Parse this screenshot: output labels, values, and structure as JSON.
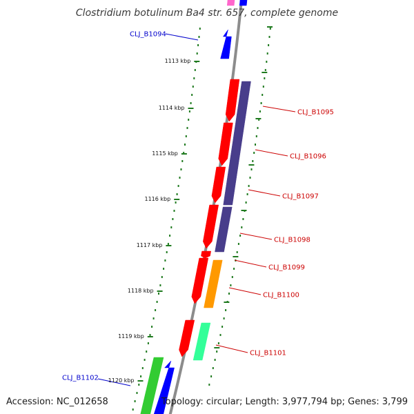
{
  "title": "Clostridium botulinum Ba4 str. 657, complete genome",
  "footer": {
    "accession": "Accession: NC_012658",
    "summary": "Topology: circular; Length: 3,977,794 bp; Genes: 3,799"
  },
  "colors": {
    "backbone": "#8c8c8c",
    "ticks": "#1f7a1f",
    "label_forward": "#0000cc",
    "label_reverse": "#cc0000",
    "red": "#ff0000",
    "slate": "#483d8b",
    "orange": "#ff9900",
    "mint": "#33ff99",
    "green": "#33cc33",
    "blue": "#0000ff",
    "pink": "#ff66cc"
  },
  "kbp_ticks": [
    "1113 kbp",
    "1114 kbp",
    "1115 kbp",
    "1116 kbp",
    "1117 kbp",
    "1118 kbp",
    "1119 kbp",
    "1120 kbp"
  ],
  "gene_labels": [
    {
      "text": "CLJ_B1094",
      "strand": "forward"
    },
    {
      "text": "CLJ_B1095",
      "strand": "reverse"
    },
    {
      "text": "CLJ_B1096",
      "strand": "reverse"
    },
    {
      "text": "CLJ_B1097",
      "strand": "reverse"
    },
    {
      "text": "CLJ_B1098",
      "strand": "reverse"
    },
    {
      "text": "CLJ_B1099",
      "strand": "reverse"
    },
    {
      "text": "CLJ_B1100",
      "strand": "reverse"
    },
    {
      "text": "CLJ_B1101",
      "strand": "reverse"
    },
    {
      "text": "CLJ_B1102",
      "strand": "forward"
    }
  ]
}
